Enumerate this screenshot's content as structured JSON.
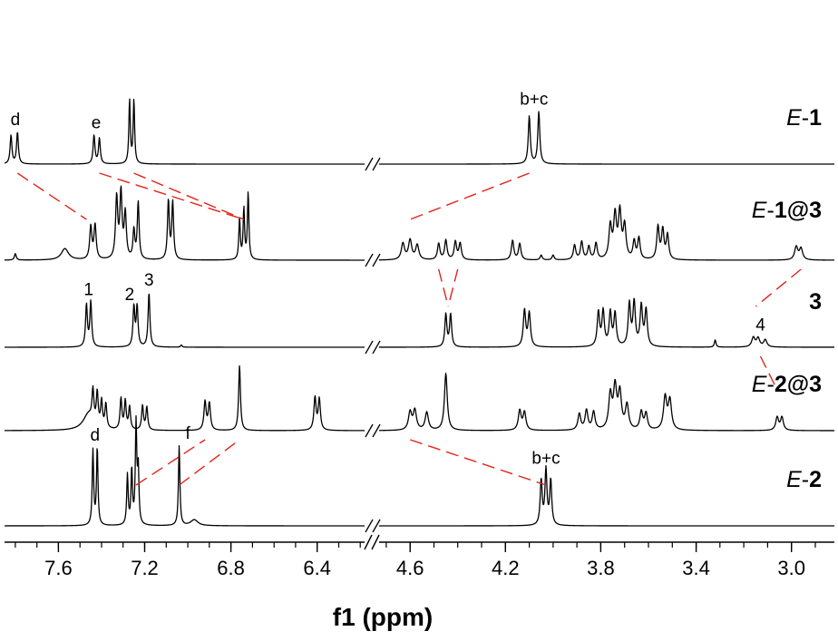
{
  "chart_data": {
    "type": "line",
    "title": "",
    "xlabel": "f1 (ppm)",
    "ylabel": "",
    "x_reversed": true,
    "broken_axis": true,
    "segments": [
      {
        "xlim": [
          7.85,
          6.18
        ],
        "ticks": [
          "7.6",
          "7.2",
          "6.8",
          "6.4"
        ],
        "tick_values": [
          7.6,
          7.2,
          6.8,
          6.4
        ]
      },
      {
        "xlim": [
          4.73,
          2.82
        ],
        "ticks": [
          "4.6",
          "4.2",
          "3.8",
          "3.4",
          "3.0"
        ],
        "tick_values": [
          4.6,
          4.2,
          3.8,
          3.4,
          3.0
        ]
      }
    ],
    "series": [
      {
        "label_parts": [
          {
            "t": "E",
            "s": "it"
          },
          {
            "t": "-",
            "s": ""
          },
          {
            "t": "1",
            "s": "bd"
          }
        ],
        "peaks": [
          [
            7.82,
            0.45,
            0.005
          ],
          [
            7.79,
            0.5,
            0.005
          ],
          [
            7.435,
            0.45,
            0.005
          ],
          [
            7.41,
            0.4,
            0.005
          ],
          [
            7.27,
            1.0,
            0.004
          ],
          [
            7.25,
            1.0,
            0.004
          ],
          [
            4.1,
            0.75,
            0.005
          ],
          [
            4.06,
            0.82,
            0.005
          ]
        ],
        "annotations": [
          {
            "text": "d",
            "x": 7.8
          },
          {
            "text": "e",
            "x": 7.425
          },
          {
            "text": "b+c",
            "x": 4.08
          }
        ]
      },
      {
        "label_parts": [
          {
            "t": "E",
            "s": "it"
          },
          {
            "t": "-",
            "s": ""
          },
          {
            "t": "1@3",
            "s": "bd"
          }
        ],
        "peaks": [
          [
            7.8,
            0.08,
            0.005
          ],
          [
            7.57,
            0.14,
            0.02
          ],
          [
            7.45,
            0.4,
            0.006
          ],
          [
            7.43,
            0.42,
            0.006
          ],
          [
            7.33,
            0.75,
            0.006
          ],
          [
            7.31,
            0.8,
            0.006
          ],
          [
            7.29,
            0.55,
            0.006
          ],
          [
            7.25,
            0.35,
            0.005
          ],
          [
            7.23,
            0.7,
            0.005
          ],
          [
            7.09,
            0.72,
            0.005
          ],
          [
            7.07,
            0.7,
            0.005
          ],
          [
            6.76,
            0.5,
            0.004
          ],
          [
            6.74,
            0.62,
            0.004
          ],
          [
            6.72,
            0.82,
            0.004
          ],
          [
            4.63,
            0.2,
            0.008
          ],
          [
            4.6,
            0.24,
            0.008
          ],
          [
            4.57,
            0.18,
            0.008
          ],
          [
            4.48,
            0.2,
            0.006
          ],
          [
            4.45,
            0.24,
            0.006
          ],
          [
            4.41,
            0.22,
            0.006
          ],
          [
            4.39,
            0.2,
            0.006
          ],
          [
            4.17,
            0.24,
            0.006
          ],
          [
            4.14,
            0.2,
            0.006
          ],
          [
            4.05,
            0.06,
            0.005
          ],
          [
            4.0,
            0.06,
            0.005
          ],
          [
            3.91,
            0.18,
            0.006
          ],
          [
            3.88,
            0.22,
            0.006
          ],
          [
            3.85,
            0.16,
            0.006
          ],
          [
            3.82,
            0.2,
            0.006
          ],
          [
            3.76,
            0.4,
            0.007
          ],
          [
            3.74,
            0.52,
            0.007
          ],
          [
            3.72,
            0.56,
            0.007
          ],
          [
            3.7,
            0.4,
            0.007
          ],
          [
            3.66,
            0.22,
            0.006
          ],
          [
            3.64,
            0.26,
            0.006
          ],
          [
            3.56,
            0.4,
            0.006
          ],
          [
            3.54,
            0.36,
            0.006
          ],
          [
            3.52,
            0.3,
            0.006
          ],
          [
            2.98,
            0.16,
            0.008
          ],
          [
            2.96,
            0.14,
            0.008
          ]
        ],
        "annotations": []
      },
      {
        "label_parts": [
          {
            "t": "3",
            "s": "bd"
          }
        ],
        "peaks": [
          [
            7.47,
            0.58,
            0.005
          ],
          [
            7.45,
            0.62,
            0.005
          ],
          [
            7.25,
            0.55,
            0.005
          ],
          [
            7.235,
            0.55,
            0.005
          ],
          [
            7.18,
            0.75,
            0.005
          ],
          [
            7.03,
            0.03,
            0.004
          ],
          [
            4.45,
            0.45,
            0.005
          ],
          [
            4.43,
            0.45,
            0.005
          ],
          [
            4.12,
            0.5,
            0.006
          ],
          [
            4.1,
            0.46,
            0.006
          ],
          [
            3.81,
            0.47,
            0.006
          ],
          [
            3.79,
            0.48,
            0.006
          ],
          [
            3.76,
            0.46,
            0.006
          ],
          [
            3.74,
            0.45,
            0.006
          ],
          [
            3.68,
            0.58,
            0.006
          ],
          [
            3.66,
            0.6,
            0.006
          ],
          [
            3.63,
            0.55,
            0.006
          ],
          [
            3.61,
            0.5,
            0.006
          ],
          [
            3.32,
            0.1,
            0.004
          ],
          [
            3.16,
            0.13,
            0.008
          ],
          [
            3.14,
            0.12,
            0.008
          ],
          [
            3.11,
            0.1,
            0.008
          ]
        ],
        "annotations": [
          {
            "text": "1",
            "x": 7.46
          },
          {
            "text": "2",
            "x": 7.27
          },
          {
            "text": "3",
            "x": 7.18
          },
          {
            "text": "4",
            "x": 3.13
          }
        ]
      },
      {
        "label_parts": [
          {
            "t": "E",
            "s": "it"
          },
          {
            "t": "-",
            "s": ""
          },
          {
            "t": "2@3",
            "s": "bd"
          }
        ],
        "peaks": [
          [
            7.46,
            0.2,
            0.03
          ],
          [
            7.44,
            0.38,
            0.005
          ],
          [
            7.42,
            0.4,
            0.005
          ],
          [
            7.4,
            0.32,
            0.005
          ],
          [
            7.38,
            0.3,
            0.005
          ],
          [
            7.31,
            0.38,
            0.005
          ],
          [
            7.29,
            0.35,
            0.005
          ],
          [
            7.27,
            0.28,
            0.005
          ],
          [
            7.21,
            0.3,
            0.005
          ],
          [
            7.19,
            0.28,
            0.005
          ],
          [
            6.92,
            0.35,
            0.006
          ],
          [
            6.9,
            0.33,
            0.006
          ],
          [
            6.76,
            0.8,
            0.005
          ],
          [
            6.41,
            0.4,
            0.006
          ],
          [
            6.39,
            0.38,
            0.006
          ],
          [
            4.6,
            0.22,
            0.008
          ],
          [
            4.58,
            0.24,
            0.008
          ],
          [
            4.53,
            0.22,
            0.008
          ],
          [
            4.45,
            0.7,
            0.007
          ],
          [
            4.14,
            0.24,
            0.007
          ],
          [
            4.12,
            0.22,
            0.007
          ],
          [
            3.89,
            0.2,
            0.007
          ],
          [
            3.86,
            0.24,
            0.007
          ],
          [
            3.83,
            0.22,
            0.007
          ],
          [
            3.76,
            0.42,
            0.008
          ],
          [
            3.74,
            0.5,
            0.008
          ],
          [
            3.72,
            0.44,
            0.008
          ],
          [
            3.69,
            0.3,
            0.008
          ],
          [
            3.63,
            0.22,
            0.007
          ],
          [
            3.61,
            0.2,
            0.007
          ],
          [
            3.53,
            0.4,
            0.008
          ],
          [
            3.51,
            0.36,
            0.008
          ],
          [
            3.06,
            0.16,
            0.007
          ],
          [
            3.04,
            0.16,
            0.007
          ]
        ],
        "annotations": []
      },
      {
        "label_parts": [
          {
            "t": "E",
            "s": "it"
          },
          {
            "t": "-",
            "s": ""
          },
          {
            "t": "2",
            "s": "bd"
          }
        ],
        "peaks": [
          [
            7.44,
            0.75,
            0.004
          ],
          [
            7.42,
            0.78,
            0.004
          ],
          [
            7.28,
            0.5,
            0.004
          ],
          [
            7.26,
            0.55,
            0.004
          ],
          [
            7.24,
            1.0,
            0.004
          ],
          [
            7.23,
            0.55,
            0.004
          ],
          [
            7.04,
            0.8,
            0.004
          ],
          [
            6.97,
            0.06,
            0.02
          ],
          [
            4.05,
            0.45,
            0.005
          ],
          [
            4.03,
            0.55,
            0.005
          ],
          [
            4.01,
            0.45,
            0.005
          ]
        ],
        "annotations": [
          {
            "text": "d",
            "x": 7.43
          },
          {
            "text": "f",
            "x": 7.0
          },
          {
            "text": "b+c",
            "x": 4.03
          }
        ]
      }
    ],
    "correlations": [
      [
        [
          7.79,
          0
        ],
        [
          7.47,
          1
        ]
      ],
      [
        [
          7.41,
          0
        ],
        [
          6.74,
          1
        ]
      ],
      [
        [
          7.25,
          0
        ],
        [
          6.74,
          1
        ]
      ],
      [
        [
          4.1,
          0
        ],
        [
          4.6,
          1
        ]
      ],
      [
        [
          4.48,
          1
        ],
        [
          4.44,
          2
        ]
      ],
      [
        [
          4.4,
          1
        ],
        [
          4.44,
          2
        ]
      ],
      [
        [
          2.96,
          1
        ],
        [
          3.15,
          2
        ]
      ],
      [
        [
          3.13,
          2
        ],
        [
          3.06,
          3
        ]
      ],
      [
        [
          7.24,
          4
        ],
        [
          6.92,
          3
        ]
      ],
      [
        [
          7.04,
          4
        ],
        [
          6.76,
          3
        ]
      ],
      [
        [
          4.6,
          3
        ],
        [
          4.03,
          4
        ]
      ]
    ]
  }
}
